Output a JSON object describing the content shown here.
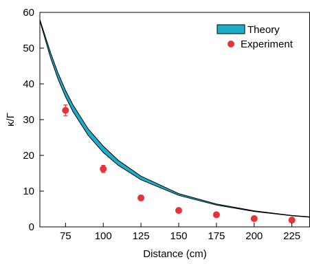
{
  "chart_data": {
    "type": "line",
    "xlabel": "Distance (cm)",
    "ylabel": "κ/Γ",
    "xlim": [
      58,
      237
    ],
    "ylim": [
      0,
      60
    ],
    "x_ticks": [
      75,
      100,
      125,
      150,
      175,
      200,
      225
    ],
    "y_ticks": [
      0,
      10,
      20,
      30,
      40,
      50,
      60
    ],
    "x_tick_labels": [
      "75",
      "100",
      "125",
      "150",
      "175",
      "200",
      "225"
    ],
    "y_tick_labels": [
      "0",
      "10",
      "20",
      "30",
      "40",
      "50",
      "60"
    ],
    "grid": false,
    "legend_position": "top-right",
    "series": [
      {
        "name": "Theory",
        "kind": "band",
        "color": "#1aaec8",
        "edge_color": "#000000",
        "x": [
          58,
          65,
          70,
          75,
          80,
          90,
          100,
          110,
          125,
          150,
          175,
          200,
          225,
          237
        ],
        "lower": [
          57.6,
          47.4,
          41.4,
          36.4,
          32.2,
          25.6,
          20.8,
          17.2,
          13.2,
          8.8,
          6.1,
          4.3,
          3.1,
          2.7
        ],
        "upper": [
          58.0,
          48.8,
          43.1,
          38.2,
          34.1,
          27.4,
          22.6,
          18.6,
          14.2,
          9.3,
          6.4,
          4.5,
          3.2,
          2.8
        ]
      },
      {
        "name": "Experiment",
        "kind": "points",
        "color": "#e8323a",
        "x": [
          75,
          100,
          125,
          150,
          175,
          200,
          225
        ],
        "y": [
          32.6,
          16.2,
          8.1,
          4.6,
          3.4,
          2.3,
          1.9
        ],
        "err": [
          1.5,
          1.0,
          0.7,
          0.5,
          0.4,
          0.35,
          0.3
        ]
      }
    ]
  }
}
